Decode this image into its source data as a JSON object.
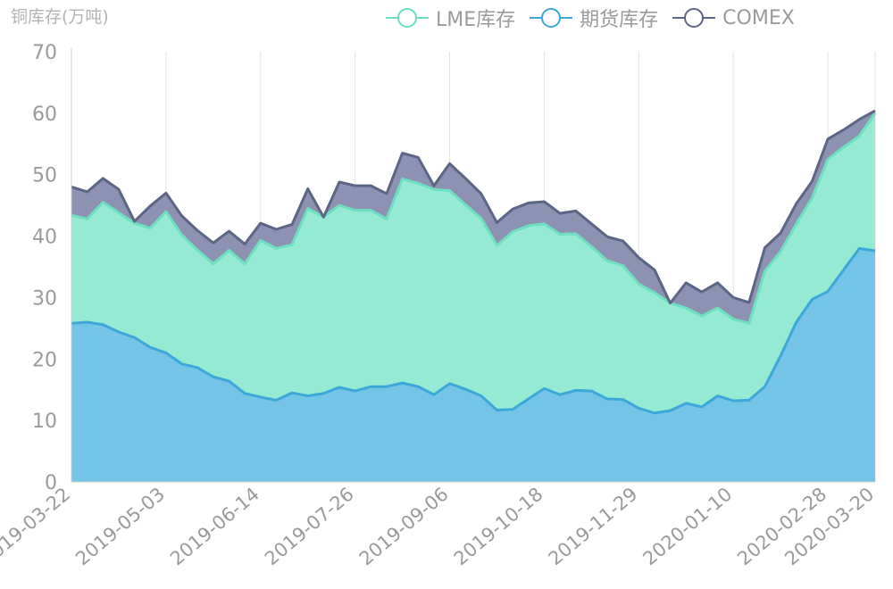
{
  "chart_data": {
    "type": "area",
    "title": "",
    "ylabel": "铜库存(万吨)",
    "xlabel": "",
    "ylim": [
      0,
      70
    ],
    "yticks": [
      0,
      10,
      20,
      30,
      40,
      50,
      60,
      70
    ],
    "grid": "vertical",
    "stacked": true,
    "legend_position": "top-right",
    "x_tick_labels": [
      "2019-03-22",
      "2019-05-03",
      "2019-06-14",
      "2019-07-26",
      "2019-09-06",
      "2019-10-18",
      "2019-11-29",
      "2020-01-10",
      "2020-02-28",
      "2020-03-20"
    ],
    "x_tick_indices": [
      0,
      6,
      12,
      18,
      24,
      30,
      36,
      42,
      48,
      51
    ],
    "series": [
      {
        "name": "期货库存",
        "color": "#3ba8d8",
        "fill": "#74c4e8",
        "values": [
          25.8,
          26.0,
          25.6,
          24.4,
          23.5,
          21.9,
          21.0,
          19.2,
          18.6,
          17.1,
          16.4,
          14.4,
          13.8,
          13.3,
          14.5,
          14.0,
          14.4,
          15.4,
          14.8,
          15.5,
          15.5,
          16.1,
          15.5,
          14.2,
          16.0,
          15.1,
          14.0,
          11.7,
          11.8,
          13.5,
          15.2,
          14.2,
          14.9,
          14.8,
          13.5,
          13.4,
          12.0,
          11.2,
          11.6,
          12.8,
          12.2,
          14.0,
          13.2,
          13.3,
          15.5,
          20.5,
          26.0,
          29.7,
          31.0,
          34.5,
          38.0,
          37.6
        ]
      },
      {
        "name": "LME库存",
        "color": "#6edfc1",
        "fill": "#95ead4",
        "values": [
          17.6,
          16.8,
          19.9,
          19.4,
          18.6,
          19.4,
          23.0,
          21.0,
          19.1,
          18.4,
          21.3,
          21.1,
          25.5,
          24.7,
          24.1,
          30.5,
          28.7,
          29.6,
          29.4,
          28.7,
          27.3,
          33.2,
          33.1,
          33.4,
          31.4,
          30.0,
          28.9,
          26.8,
          28.9,
          28.2,
          26.8,
          26.1,
          25.5,
          23.5,
          22.5,
          21.8,
          20.2,
          19.6,
          17.5,
          15.5,
          14.8,
          14.3,
          13.3,
          12.5,
          18.8,
          17.0,
          16.0,
          16.5,
          21.5,
          20.0,
          18.3,
          22.4
        ]
      },
      {
        "name": "COMEX",
        "color": "#5b6585",
        "fill": "#8e92b2",
        "values": [
          4.6,
          4.4,
          3.9,
          3.8,
          0.3,
          3.6,
          3.0,
          3.1,
          3.2,
          3.4,
          3.1,
          3.2,
          2.8,
          3.1,
          3.3,
          3.2,
          0.0,
          3.8,
          4.0,
          4.0,
          4.1,
          4.2,
          4.2,
          0.6,
          4.4,
          4.3,
          4.0,
          3.7,
          3.7,
          3.7,
          3.6,
          3.4,
          3.7,
          3.7,
          3.9,
          4.0,
          4.3,
          3.7,
          0.0,
          4.1,
          3.9,
          4.1,
          3.5,
          3.4,
          3.8,
          3.0,
          3.3,
          2.7,
          3.3,
          2.8,
          2.7,
          0.4
        ]
      }
    ]
  }
}
